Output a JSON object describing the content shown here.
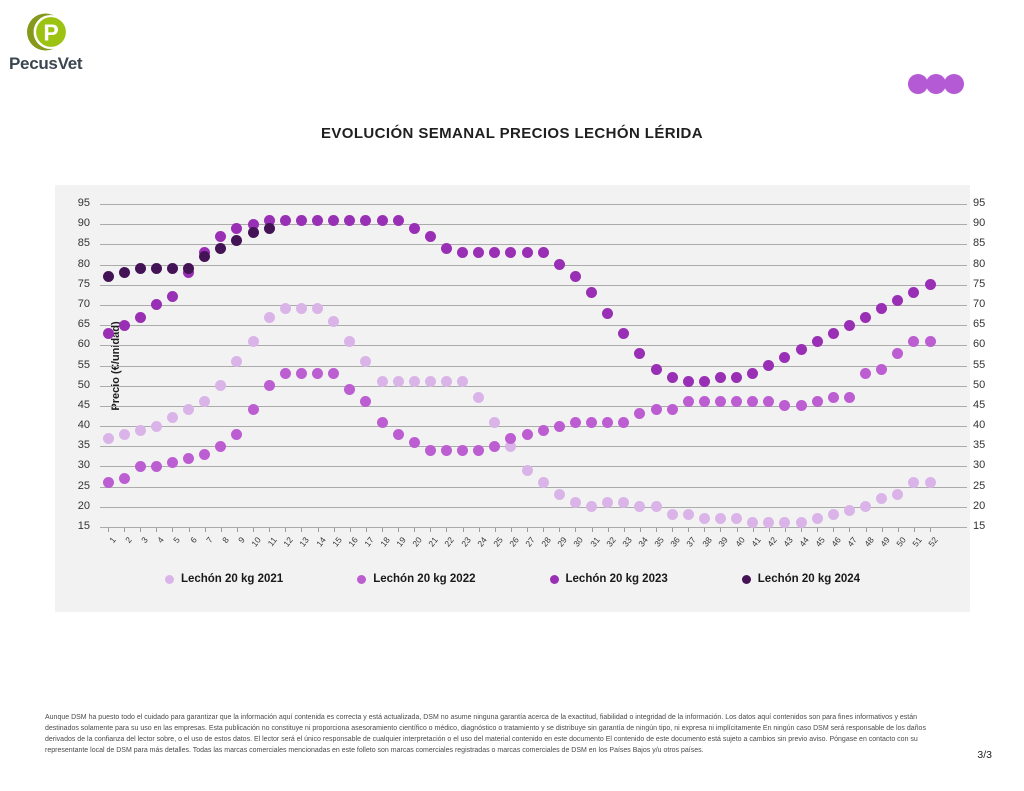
{
  "brand": {
    "name": "PecusVet",
    "logo_letter": "P",
    "logo_olive": "#87991b",
    "logo_lime": "#9cc312",
    "wordmark_color": "#3b4650"
  },
  "header": {
    "dots_color": "#b45ad4",
    "dots_count": 3
  },
  "title": "EVOLUCIÓN SEMANAL PRECIOS LECHÓN LÉRIDA",
  "chart_data": {
    "type": "scatter",
    "title": "EVOLUCIÓN SEMANAL PRECIOS LECHÓN LÉRIDA",
    "xlabel": "",
    "ylabel": "Precio (€/unidad)",
    "ylim": [
      15,
      95
    ],
    "ytick_step": 5,
    "grid": true,
    "grid_color": "#ababab",
    "background": "#f2f2f2",
    "legend_position": "bottom",
    "categories": [
      1,
      2,
      3,
      4,
      5,
      6,
      7,
      8,
      9,
      10,
      11,
      12,
      13,
      14,
      15,
      16,
      17,
      18,
      19,
      20,
      21,
      22,
      23,
      24,
      25,
      26,
      27,
      28,
      29,
      30,
      31,
      32,
      33,
      34,
      35,
      36,
      37,
      38,
      39,
      40,
      41,
      42,
      43,
      44,
      45,
      46,
      47,
      48,
      49,
      50,
      51,
      52
    ],
    "series": [
      {
        "name": "Lechón 20 kg 2021",
        "color": "#dab4e8",
        "values": [
          37,
          38,
          39,
          40,
          42,
          44,
          46,
          50,
          56,
          61,
          67,
          69,
          69,
          69,
          66,
          61,
          56,
          51,
          51,
          51,
          51,
          51,
          51,
          47,
          41,
          35,
          29,
          26,
          23,
          21,
          20,
          21,
          21,
          20,
          20,
          18,
          18,
          17,
          17,
          17,
          16,
          16,
          16,
          16,
          17,
          18,
          19,
          20,
          22,
          23,
          26,
          26
        ]
      },
      {
        "name": "Lechón 20 kg 2022",
        "color": "#bc5ed2",
        "values": [
          26,
          27,
          30,
          30,
          31,
          32,
          33,
          35,
          38,
          44,
          50,
          53,
          53,
          53,
          53,
          49,
          46,
          41,
          38,
          36,
          34,
          34,
          34,
          34,
          35,
          37,
          38,
          39,
          40,
          41,
          41,
          41,
          41,
          43,
          44,
          44,
          46,
          46,
          46,
          46,
          46,
          46,
          45,
          45,
          46,
          47,
          47,
          53,
          54,
          58,
          61,
          61
        ]
      },
      {
        "name": "Lechón 20 kg 2023",
        "color": "#992fb4",
        "values": [
          63,
          65,
          67,
          70,
          72,
          78,
          83,
          87,
          89,
          90,
          91,
          91,
          91,
          91,
          91,
          91,
          91,
          91,
          91,
          89,
          87,
          84,
          83,
          83,
          83,
          83,
          83,
          83,
          80,
          77,
          73,
          68,
          63,
          58,
          54,
          52,
          51,
          51,
          52,
          52,
          53,
          55,
          57,
          59,
          61,
          63,
          65,
          67,
          69,
          71,
          73,
          75
        ]
      },
      {
        "name": "Lechón 20 kg 2024",
        "color": "#441356",
        "values": [
          77,
          78,
          79,
          79,
          79,
          79,
          82,
          84,
          86,
          88,
          89,
          null,
          null,
          null,
          null,
          null,
          null,
          null,
          null,
          null,
          null,
          null,
          null,
          null,
          null,
          null,
          null,
          null,
          null,
          null,
          null,
          null,
          null,
          null,
          null,
          null,
          null,
          null,
          null,
          null,
          null,
          null,
          null,
          null,
          null,
          null,
          null,
          null,
          null,
          null,
          null,
          null
        ]
      }
    ]
  },
  "footer": {
    "disclaimer": "Aunque DSM ha puesto todo el cuidado para garantizar que la información aquí contenida es correcta y está actualizada, DSM no asume ninguna garantía acerca de la exactitud, fiabilidad o integridad de la información. Los datos aquí contenidos son para fines informativos y están destinados solamente para su uso en las empresas. Esta publicación no constituye ni proporciona asesoramiento científico o médico, diagnóstico o tratamiento y se distribuye sin garantía de ningún tipo, ni expresa ni implícitamente En ningún caso DSM será responsable de los daños derivados de la confianza del lector sobre, o el uso de estos datos. El lector será el único responsable de cualquier interpretación o el uso del material contenido en este documento El contenido de este documento está sujeto a cambios sin previo aviso. Póngase en contacto con su representante local de DSM para más detalles. Todas las marcas comerciales mencionadas en este folleto son marcas comerciales registradas o marcas comerciales de DSM en los Países Bajos y/u otros países.",
    "page": "3/3"
  }
}
